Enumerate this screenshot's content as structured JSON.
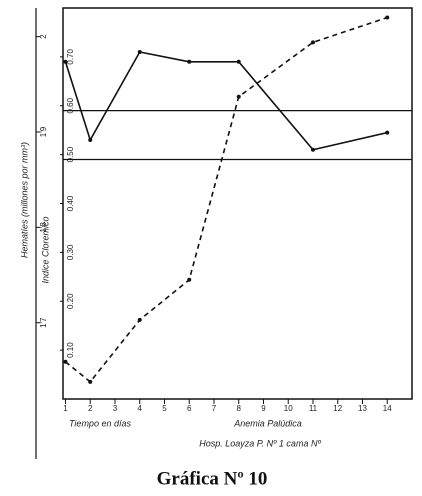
{
  "chart_data": {
    "type": "line",
    "caption": "Gráfica Nº 10",
    "ylabel": "Indice Cloremico",
    "y2label": "Hematíes (millones por mm³)",
    "xlabel": "Tiempo en días",
    "subtitle": "Anemia Palúdica",
    "footer": "Hosp. Loayza P. Nº 1 cama Nº",
    "xlim": [
      0.9,
      15
    ],
    "xticks": [
      1,
      2,
      3,
      4,
      5,
      6,
      7,
      8,
      9,
      10,
      11,
      12,
      13,
      14
    ],
    "ylim": [
      0,
      0.8
    ],
    "yticks": [
      {
        "value": 0.1,
        "label": "0.10"
      },
      {
        "value": 0.2,
        "label": "0.20"
      },
      {
        "value": 0.3,
        "label": "0.30"
      },
      {
        "value": 0.4,
        "label": "0.40"
      },
      {
        "value": 0.5,
        "label": "0.50"
      },
      {
        "value": 0.6,
        "label": "0.60"
      },
      {
        "value": 0.7,
        "label": "0.70"
      }
    ],
    "y2lim": [
      1.62,
      2.03
    ],
    "y2ticks": [
      {
        "value": 1.7,
        "label": "1'7"
      },
      {
        "value": 1.8,
        "label": "1'8"
      },
      {
        "value": 1.9,
        "label": "1'9"
      },
      {
        "value": 2,
        "label": "2"
      }
    ],
    "hlines": [
      0.59,
      0.49
    ],
    "series": [
      {
        "name": "Indice Cloremico",
        "color": "#111",
        "dash": false,
        "x": [
          1,
          2,
          4,
          6,
          8,
          11,
          14
        ],
        "values": [
          0.69,
          0.53,
          0.71,
          0.69,
          0.69,
          0.51,
          0.545
        ]
      },
      {
        "name": "Hematíes",
        "color": "#111",
        "dash": true,
        "axis": "y2",
        "x": [
          1,
          2,
          4,
          6,
          8,
          11,
          14
        ],
        "values": [
          1.659,
          1.638,
          1.703,
          1.745,
          1.937,
          1.994,
          2.02
        ]
      }
    ]
  }
}
